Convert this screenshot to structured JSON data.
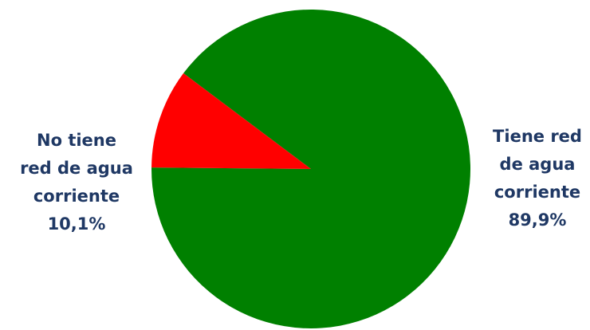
{
  "chart_data": {
    "type": "pie",
    "title": "",
    "slices": [
      {
        "label_lines": [
          "Tiene red",
          "de agua",
          "corriente"
        ],
        "value": 89.9,
        "value_label": "89,9%",
        "color": "#008000"
      },
      {
        "label_lines": [
          "No tiene",
          "red de agua",
          "corriente"
        ],
        "value": 10.1,
        "value_label": "10,1%",
        "color": "#ff0000"
      }
    ],
    "label_color": "#1f3864",
    "legend": "none"
  }
}
